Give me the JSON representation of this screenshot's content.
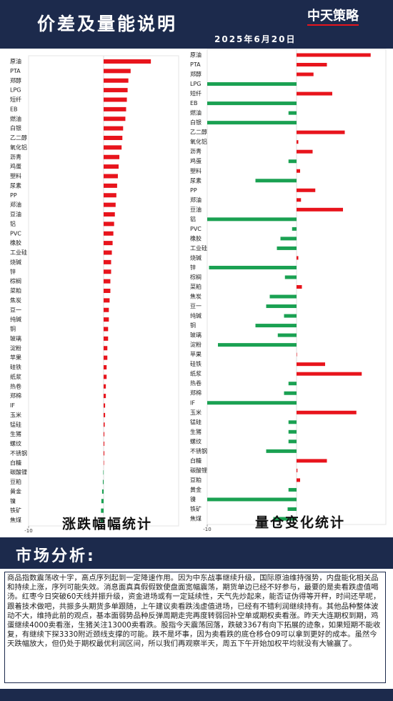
{
  "header": {
    "title": "价差及量能说明",
    "logo": "中天策略",
    "date": "2025年6月20日"
  },
  "chart_data": [
    {
      "type": "bar",
      "orientation": "horizontal",
      "title": "涨跌幅幅统计",
      "categories": [
        "原油",
        "PTA",
        "郑醇",
        "LPG",
        "短纤",
        "EB",
        "燃油",
        "白银",
        "乙二醇",
        "氧化铝",
        "沥青",
        "鸡蛋",
        "塑料",
        "尿素",
        "PP",
        "郑油",
        "豆油",
        "铝",
        "PVC",
        "橡胶",
        "工业硅",
        "烧碱",
        "锌",
        "棕榈",
        "菜粕",
        "焦炭",
        "豆一",
        "纯碱",
        "铜",
        "玻璃",
        "淀粉",
        "苹果",
        "硅铁",
        "纸浆",
        "热卷",
        "郑棉",
        "IF",
        "玉米",
        "锰硅",
        "生猪",
        "螺纹",
        "不锈钢",
        "白糖",
        "碳酸锂",
        "豆粕",
        "黄金",
        "镍",
        "铁矿",
        "焦煤"
      ],
      "values": [
        6.3,
        3.6,
        3.3,
        3.2,
        3.1,
        3.0,
        2.9,
        2.6,
        2.5,
        2.4,
        2.1,
        2.0,
        1.9,
        1.8,
        1.7,
        1.6,
        1.5,
        1.4,
        1.3,
        1.2,
        1.1,
        1.0,
        1.0,
        0.9,
        0.9,
        0.8,
        0.7,
        0.7,
        0.6,
        0.6,
        0.5,
        0.5,
        0.4,
        0.4,
        0.3,
        0.3,
        0.2,
        0.2,
        0.15,
        0.1,
        0.1,
        0.1,
        0.05,
        -0.05,
        -0.1,
        -0.2,
        -0.3,
        -0.35,
        -0.4
      ],
      "positive_color": "#e8141c",
      "negative_color": "#1aa152",
      "xlim": [
        -10,
        10
      ],
      "xticks": [
        -10
      ]
    },
    {
      "type": "bar",
      "orientation": "horizontal",
      "title": "量仓变化统计",
      "categories": [
        "原油",
        "PTA",
        "郑醇",
        "LPG",
        "短纤",
        "EB",
        "燃油",
        "白银",
        "乙二醇",
        "氧化铝",
        "沥青",
        "鸡蛋",
        "塑料",
        "尿素",
        "PP",
        "郑油",
        "豆油",
        "铝",
        "PVC",
        "橡胶",
        "工业硅",
        "烧碱",
        "锌",
        "棕榈",
        "菜粕",
        "焦炭",
        "豆一",
        "纯碱",
        "铜",
        "玻璃",
        "淀粉",
        "苹果",
        "硅铁",
        "纸浆",
        "热卷",
        "郑棉",
        "IF",
        "玉米",
        "锰硅",
        "生猪",
        "螺纹",
        "不锈钢",
        "白糖",
        "碳酸锂",
        "豆粕",
        "黄金",
        "镍",
        "铁矿",
        "焦煤"
      ],
      "values": [
        8.3,
        3.4,
        1.9,
        -10,
        4.0,
        -10,
        -0.9,
        -10,
        5.4,
        0.2,
        1.8,
        -0.9,
        0.4,
        -4.6,
        2.1,
        0.5,
        5.2,
        -10,
        -0.5,
        -1.8,
        -2.2,
        0.2,
        -9.8,
        -1.3,
        0.6,
        -3.0,
        -3.4,
        -1.4,
        -4.6,
        -2.1,
        -8.8,
        0.02,
        3.2,
        7.3,
        -0.9,
        -1.4,
        -10,
        6.7,
        -0.9,
        -0.9,
        -0.9,
        -3.4,
        3.4,
        0.1,
        0.4,
        -0.9,
        -10,
        -1.0,
        -2.6
      ],
      "positive_color": "#e8141c",
      "negative_color": "#1aa152",
      "xlim": [
        -10,
        10
      ],
      "xticks": [
        -10
      ]
    }
  ],
  "analysis": {
    "heading": "市场分析:",
    "text": "商品指数震荡收十字，高点序列起到一定降速作用。因为中东战事继续升级，国际原油维持强势，内盘能化相关品和持续上涨，序列可能失效。消息面真真假假致使盘面宽幅震荡，期货单边已经不好参与，最要的是卖看跌虚值喝汤。红枣今日突破60天线并振升级，资金进场或有一定延续性，天气先炒起来，能否证伪得等开秤，时间还早呢，跟着技术做吧，共振多头期货多单跟随，上午建议卖看跌浅虚值进场，已经有不错利润继续持有。其他品种整体波动不大，维持此前的观点，基本面弱势品种反弹周期走完再度转弱回补空单或期权卖看涨。昨天大连期权到期，鸡蛋继续4000卖看涨，生猪关注13000卖看跌。股指今天震荡回落，跌破3367有向下拓展的迹象，如果短期不能收复，有继续下探3330附近颈线支撑的可能。跌不是坏事，因为卖看跌的底仓移仓09可以拿到更好的成本。虽然今天跌幅放大，但仍处于期权最优利润区间，所以我们再观察半天，周五下午开始加权平均就没有大输赢了。"
  }
}
